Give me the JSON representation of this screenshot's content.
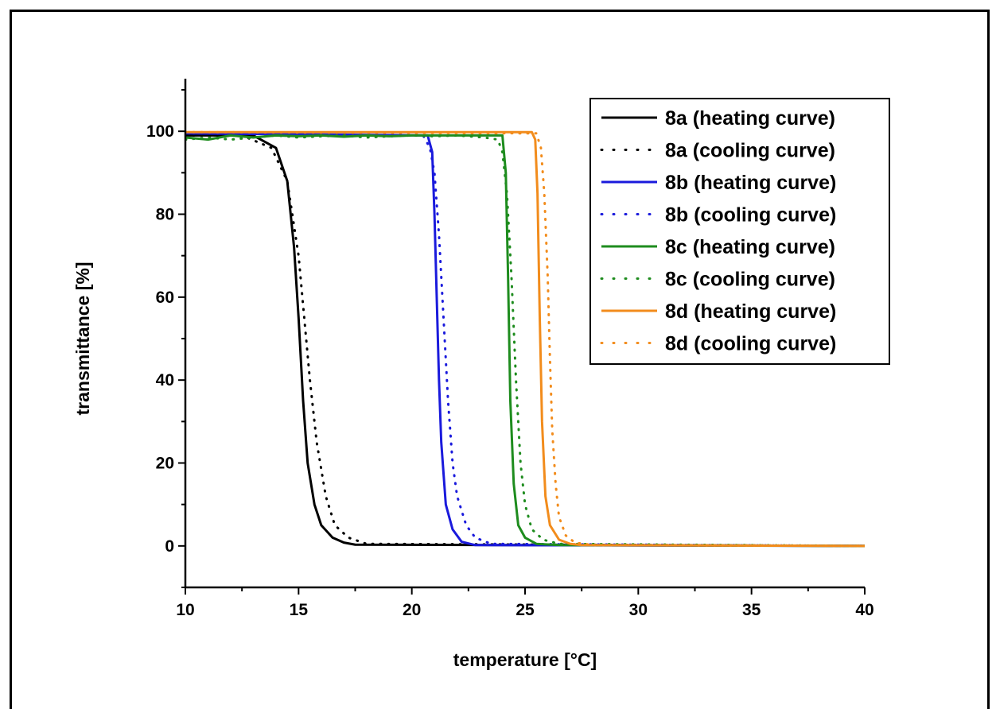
{
  "chart_data": {
    "type": "line",
    "xlabel": "temperature [°C]",
    "ylabel": "transmittance [%]",
    "xlim": [
      10,
      40
    ],
    "ylim": [
      -10,
      110
    ],
    "xticks": [
      10,
      15,
      20,
      25,
      30,
      35,
      40
    ],
    "yticks": [
      0,
      20,
      40,
      60,
      80,
      100
    ],
    "legend_position": "top-right",
    "series": [
      {
        "name": "8a (heating curve)",
        "color": "#000000",
        "style": "solid",
        "x": [
          10,
          13.0,
          14.0,
          14.5,
          14.8,
          15.0,
          15.2,
          15.4,
          15.7,
          16.0,
          16.5,
          17.0,
          17.5,
          40
        ],
        "y": [
          99.0,
          99.0,
          96.0,
          88.0,
          72.0,
          55.0,
          35.0,
          20.0,
          10.0,
          5.0,
          2.0,
          0.8,
          0.3,
          0.0
        ]
      },
      {
        "name": "8a (cooling curve)",
        "color": "#000000",
        "style": "dotted",
        "x": [
          10,
          12.5,
          13.8,
          14.5,
          15.0,
          15.2,
          15.5,
          15.8,
          16.2,
          16.6,
          17.2,
          18.0,
          40
        ],
        "y": [
          99.0,
          99.0,
          96.0,
          88.0,
          70.0,
          58.0,
          40.0,
          25.0,
          12.0,
          5.0,
          2.0,
          0.5,
          0.0
        ]
      },
      {
        "name": "8b (heating curve)",
        "color": "#1a1adc",
        "style": "solid",
        "x": [
          10,
          20.7,
          20.9,
          21.0,
          21.1,
          21.2,
          21.3,
          21.5,
          21.8,
          22.2,
          22.8,
          40
        ],
        "y": [
          99.5,
          99.0,
          95.0,
          80.0,
          60.0,
          40.0,
          25.0,
          10.0,
          4.0,
          1.0,
          0.2,
          0.0
        ]
      },
      {
        "name": "8b (cooling curve)",
        "color": "#1a1adc",
        "style": "dotted",
        "x": [
          10,
          20.5,
          20.8,
          21.0,
          21.2,
          21.4,
          21.6,
          21.8,
          22.0,
          22.4,
          22.8,
          23.5,
          40
        ],
        "y": [
          99.5,
          99.0,
          96.0,
          90.0,
          75.0,
          55.0,
          35.0,
          20.0,
          12.0,
          5.0,
          2.0,
          0.5,
          0.0
        ]
      },
      {
        "name": "8c (heating curve)",
        "color": "#1e8c1e",
        "style": "solid",
        "x": [
          10,
          11,
          12,
          13,
          14,
          15,
          16,
          17,
          18,
          19,
          20,
          21,
          22,
          23,
          24.0,
          24.15,
          24.25,
          24.35,
          24.5,
          24.7,
          25.0,
          25.5,
          26.5,
          40
        ],
        "y": [
          98.5,
          98.0,
          99.0,
          98.5,
          99.0,
          98.8,
          99.0,
          98.7,
          99.0,
          98.8,
          99.0,
          99.0,
          99.0,
          99.0,
          99.0,
          90.0,
          65.0,
          35.0,
          15.0,
          5.0,
          2.0,
          0.5,
          0.2,
          0.0
        ]
      },
      {
        "name": "8c (cooling curve)",
        "color": "#1e8c1e",
        "style": "dotted",
        "x": [
          10,
          11,
          12,
          13,
          14,
          15,
          16,
          17,
          18,
          19,
          20,
          21,
          22,
          23.2,
          23.8,
          24.0,
          24.2,
          24.4,
          24.6,
          24.8,
          25.0,
          25.3,
          25.8,
          26.5,
          40
        ],
        "y": [
          98.0,
          98.5,
          98.0,
          98.5,
          99.0,
          98.5,
          98.8,
          99.0,
          98.5,
          98.8,
          99.0,
          98.8,
          99.0,
          98.5,
          98.0,
          95.0,
          85.0,
          65.0,
          40.0,
          20.0,
          10.0,
          4.0,
          1.5,
          0.5,
          0.0
        ]
      },
      {
        "name": "8d (heating curve)",
        "color": "#f28c1c",
        "style": "solid",
        "x": [
          10,
          25.3,
          25.45,
          25.55,
          25.65,
          25.75,
          25.9,
          26.1,
          26.5,
          27.0,
          27.5,
          40
        ],
        "y": [
          99.8,
          99.8,
          98.0,
          85.0,
          55.0,
          30.0,
          12.0,
          5.0,
          1.5,
          0.5,
          0.2,
          0.0
        ]
      },
      {
        "name": "8d (cooling curve)",
        "color": "#f28c1c",
        "style": "dotted",
        "x": [
          10,
          25.5,
          25.7,
          25.85,
          26.0,
          26.1,
          26.2,
          26.35,
          26.5,
          26.8,
          27.2,
          28.0,
          40
        ],
        "y": [
          99.8,
          99.5,
          96.0,
          85.0,
          65.0,
          45.0,
          28.0,
          15.0,
          7.0,
          2.5,
          0.8,
          0.2,
          0.0
        ]
      }
    ]
  }
}
